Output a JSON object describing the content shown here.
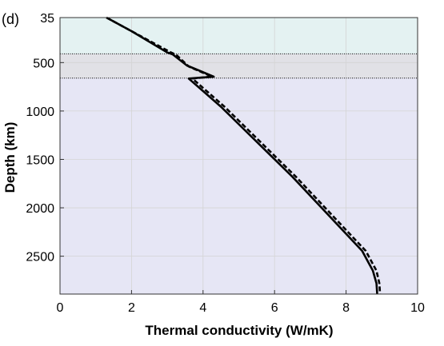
{
  "chart_data": {
    "type": "line",
    "panel_label": "(d)",
    "xlabel": "Thermal conductivity (W/mK)",
    "ylabel": "Depth (km)",
    "xlim": [
      0,
      10
    ],
    "ylim": [
      35,
      2891
    ],
    "y_reversed": true,
    "grid": true,
    "x_ticks": [
      0,
      2,
      4,
      6,
      8,
      10
    ],
    "y_ticks": [
      {
        "value": 35,
        "label": "35"
      },
      {
        "value": 500,
        "label": "500"
      },
      {
        "value": 1000,
        "label": "1000"
      },
      {
        "value": 1500,
        "label": "1500"
      },
      {
        "value": 2000,
        "label": "2000"
      },
      {
        "value": 2500,
        "label": "2500"
      }
    ],
    "layers": [
      {
        "from": 35,
        "to": 410,
        "color": "#e4f2f2"
      },
      {
        "from": 410,
        "to": 660,
        "color": "#e1e1e6"
      },
      {
        "from": 660,
        "to": 2891,
        "color": "#e6e6f5"
      }
    ],
    "boundaries": [
      410,
      660
    ],
    "series": [
      {
        "style": "solid",
        "color": "#000000",
        "points": [
          {
            "x": 1.3,
            "y": 35
          },
          {
            "x": 2.0,
            "y": 175
          },
          {
            "x": 3.0,
            "y": 395
          },
          {
            "x": 3.15,
            "y": 415
          },
          {
            "x": 3.55,
            "y": 530
          },
          {
            "x": 4.3,
            "y": 645
          },
          {
            "x": 3.6,
            "y": 665
          },
          {
            "x": 4.5,
            "y": 955
          },
          {
            "x": 6.5,
            "y": 1680
          },
          {
            "x": 8.45,
            "y": 2445
          },
          {
            "x": 8.75,
            "y": 2650
          },
          {
            "x": 8.85,
            "y": 2780
          },
          {
            "x": 8.87,
            "y": 2891
          }
        ]
      },
      {
        "style": "dashed",
        "color": "#000000",
        "points": [
          {
            "x": 1.3,
            "y": 35
          },
          {
            "x": 2.0,
            "y": 175
          },
          {
            "x": 3.1,
            "y": 395
          },
          {
            "x": 3.25,
            "y": 420
          },
          {
            "x": 3.6,
            "y": 540
          },
          {
            "x": 4.25,
            "y": 645
          },
          {
            "x": 3.7,
            "y": 665
          },
          {
            "x": 4.6,
            "y": 955
          },
          {
            "x": 6.6,
            "y": 1680
          },
          {
            "x": 8.55,
            "y": 2445
          },
          {
            "x": 8.85,
            "y": 2650
          },
          {
            "x": 8.93,
            "y": 2780
          },
          {
            "x": 8.95,
            "y": 2891
          }
        ]
      }
    ]
  }
}
